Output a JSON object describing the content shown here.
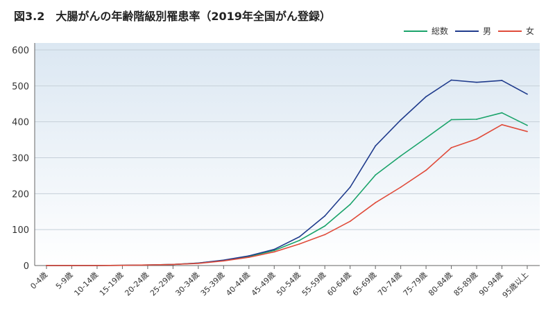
{
  "chart_data": {
    "type": "line",
    "title": "図3.2　大腸がんの年齢階級別罹患率（2019年全国がん登録）",
    "xlabel": "",
    "ylabel": "",
    "ylim": [
      0,
      600
    ],
    "yticks": [
      0,
      100,
      200,
      300,
      400,
      500,
      600
    ],
    "grid": true,
    "legend_position": "top-right",
    "categories": [
      "0-4歳",
      "5-9歳",
      "10-14歳",
      "15-19歳",
      "20-24歳",
      "25-29歳",
      "30-34歳",
      "35-39歳",
      "40-44歳",
      "45-49歳",
      "50-54歳",
      "55-59歳",
      "60-64歳",
      "65-69歳",
      "70-74歳",
      "75-79歳",
      "80-84歳",
      "85-89歳",
      "90-94歳",
      "95歳以上"
    ],
    "series": [
      {
        "name": "総数",
        "color": "#1aa36a",
        "values": [
          0.1,
          0.1,
          0.2,
          0.5,
          1.5,
          3,
          7,
          14,
          25,
          42,
          70,
          110,
          170,
          252,
          305,
          355,
          406,
          407,
          425,
          390
        ]
      },
      {
        "name": "男",
        "color": "#1f3b8c",
        "values": [
          0.1,
          0.1,
          0.2,
          0.5,
          1.5,
          3,
          7,
          15,
          27,
          45,
          80,
          138,
          218,
          333,
          405,
          470,
          516,
          510,
          515,
          477
        ]
      },
      {
        "name": "女",
        "color": "#e04b3a",
        "values": [
          0.1,
          0.1,
          0.2,
          0.5,
          1.5,
          3,
          6,
          13,
          23,
          38,
          60,
          86,
          123,
          175,
          218,
          265,
          328,
          352,
          392,
          373
        ]
      }
    ]
  }
}
